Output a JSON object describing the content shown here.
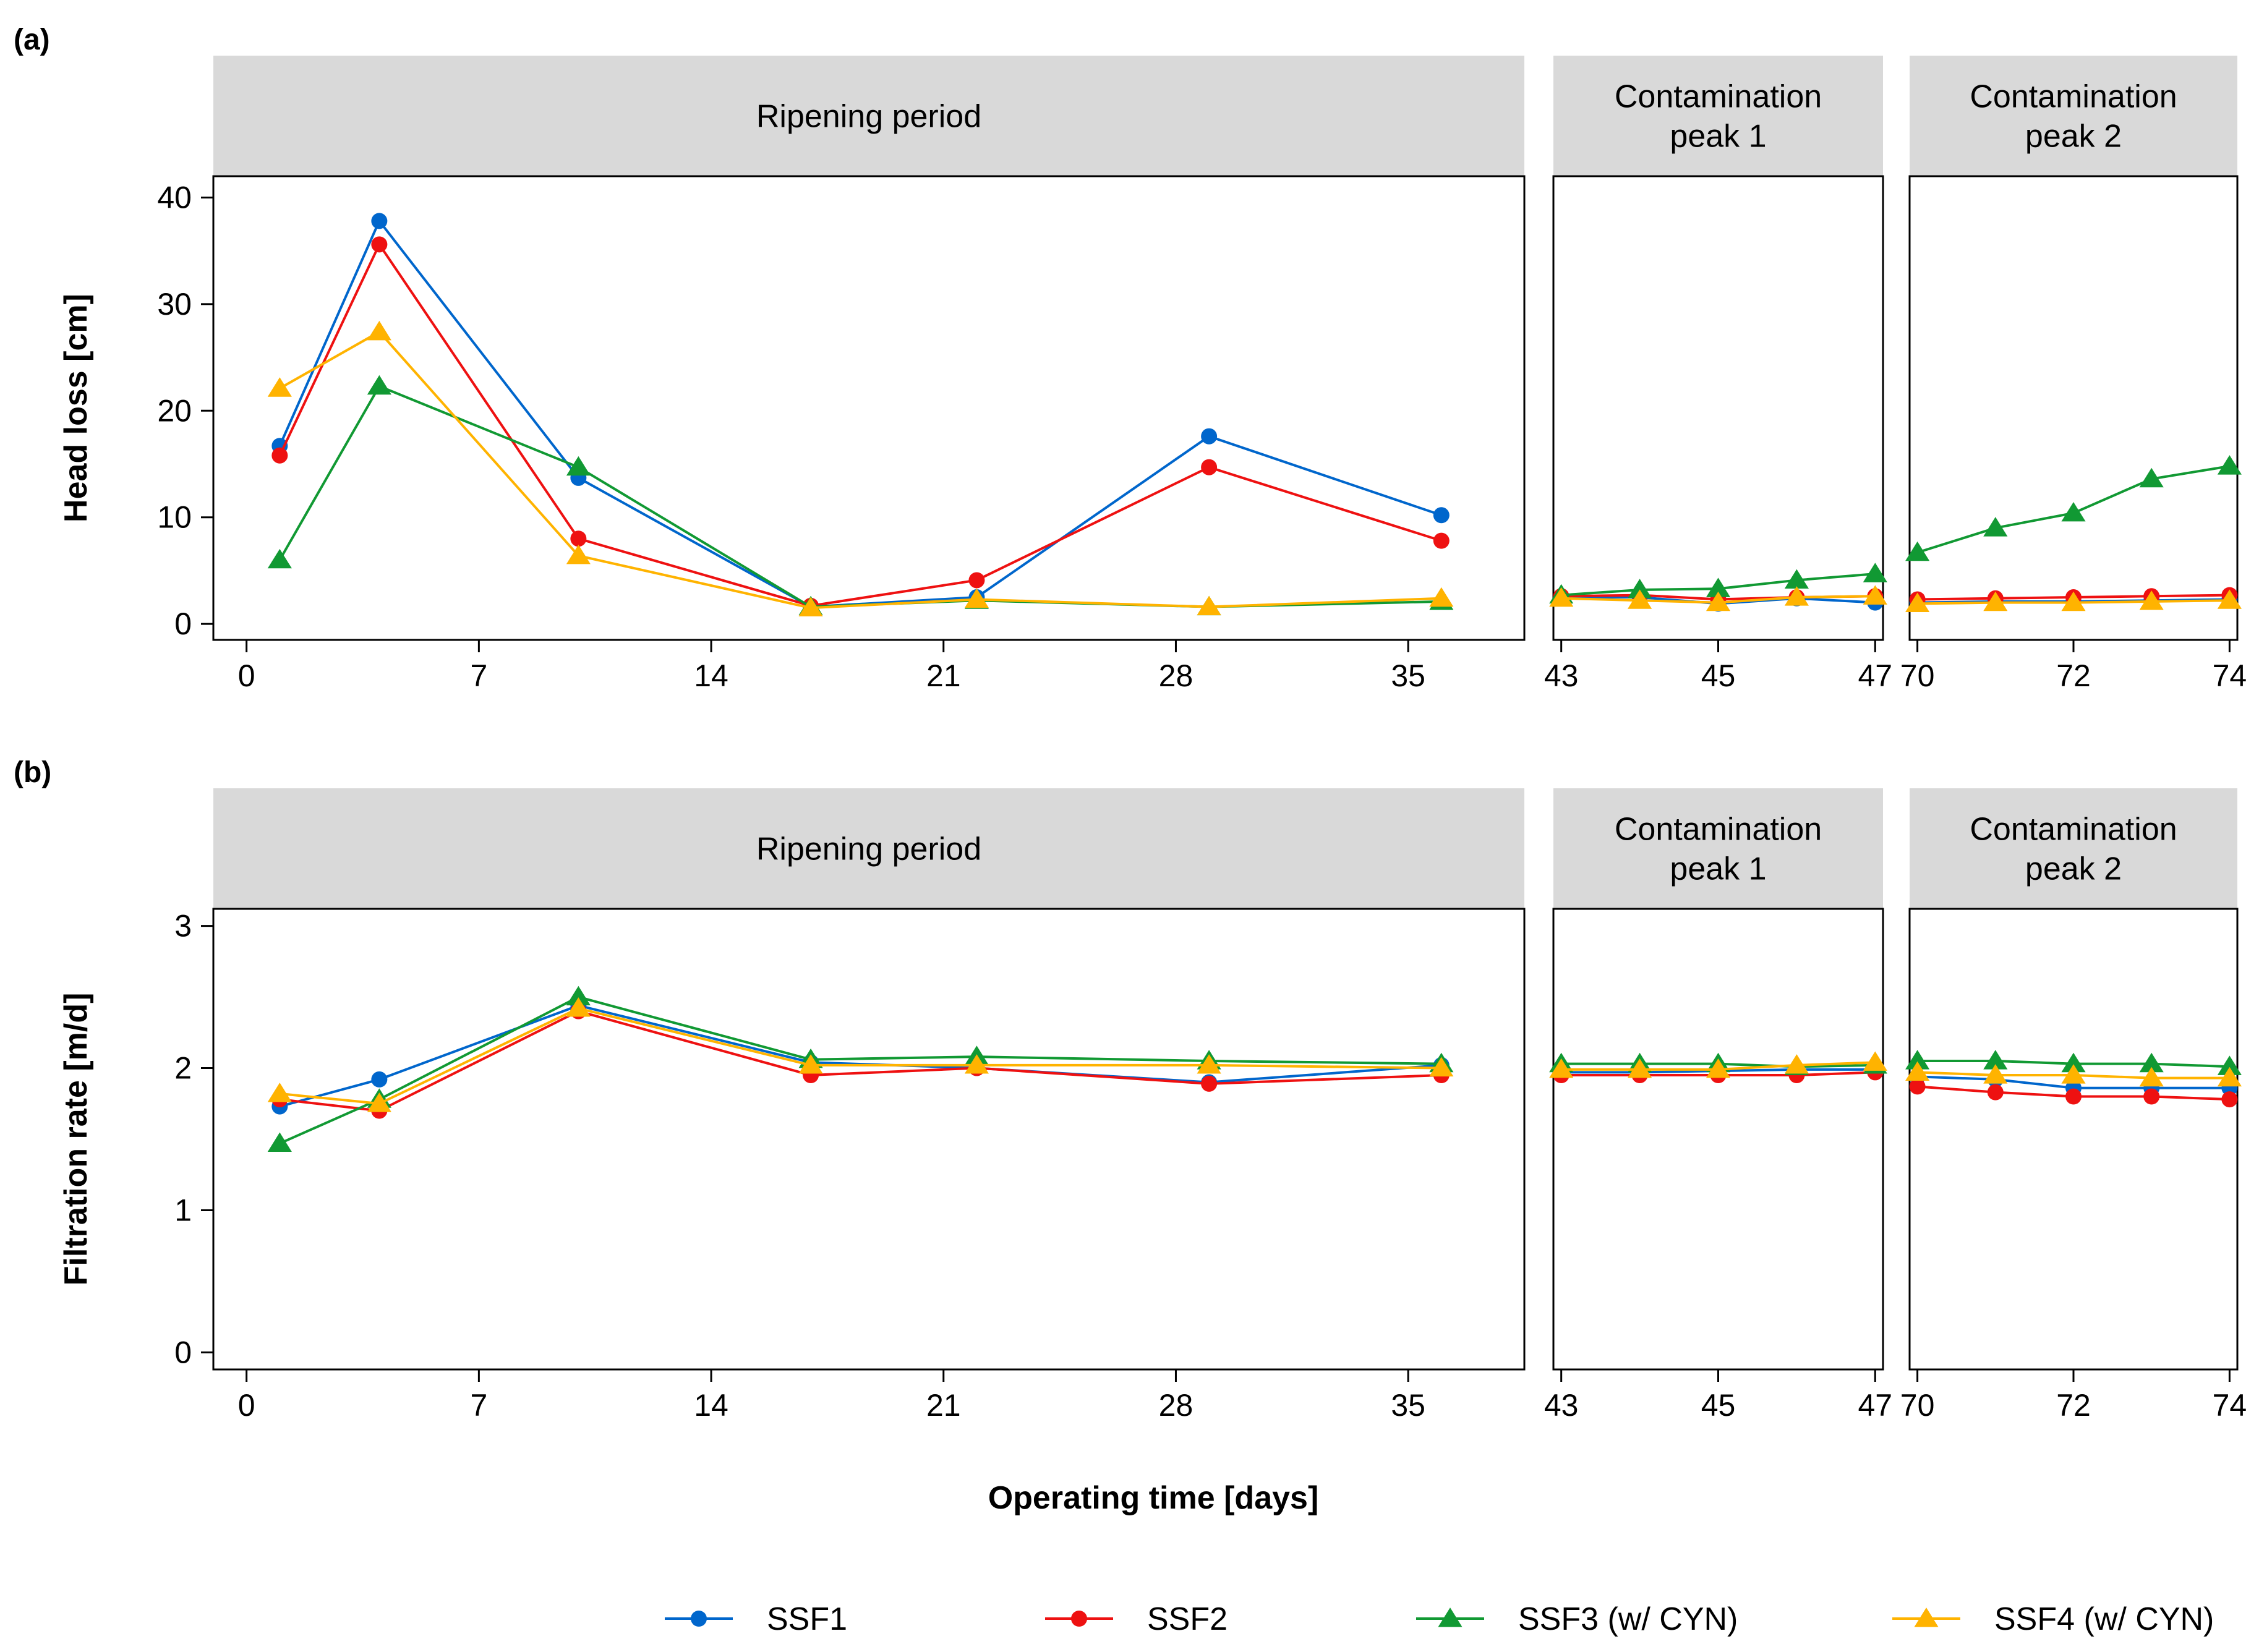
{
  "chart_data": {
    "type": "line",
    "xlabel": "Operating time [days]",
    "legend": {
      "position": "bottom",
      "entries": [
        {
          "name": "SSF1",
          "color": "#0066CC",
          "marker": "circle"
        },
        {
          "name": "SSF2",
          "color": "#EE1111",
          "marker": "circle"
        },
        {
          "name": "SSF3 (w/ CYN)",
          "color": "#119933",
          "marker": "triangle"
        },
        {
          "name": "SSF4 (w/ CYN)",
          "color": "#FFB300",
          "marker": "triangle"
        }
      ]
    },
    "facets": [
      {
        "label": "Ripening period",
        "xlim": [
          -1,
          38.5
        ],
        "xticks": [
          0,
          7,
          14,
          21,
          28,
          35
        ]
      },
      {
        "label": "Contamination\npeak 1",
        "xlim": [
          42.9,
          47.1
        ],
        "xticks": [
          43,
          45,
          47
        ]
      },
      {
        "label": "Contamination\npeak 2",
        "xlim": [
          69.9,
          74.1
        ],
        "xticks": [
          70,
          72,
          74
        ]
      }
    ],
    "panels": [
      {
        "tag": "(a)",
        "ylabel": "Head loss [cm]",
        "ylim": [
          -1.5,
          42
        ],
        "yticks": [
          0,
          10,
          20,
          30,
          40
        ],
        "series": [
          {
            "name": "SSF1",
            "points": [
              [
                1,
                16.7
              ],
              [
                4,
                37.8
              ],
              [
                10,
                13.7
              ],
              [
                17,
                1.6
              ],
              [
                22,
                2.5
              ],
              [
                29,
                17.6
              ],
              [
                36,
                10.2
              ],
              [
                43,
                2.5
              ],
              [
                44,
                2.5
              ],
              [
                45,
                1.9
              ],
              [
                46,
                2.4
              ],
              [
                47,
                2.0
              ],
              [
                70,
                2.0
              ],
              [
                71,
                2.1
              ],
              [
                72,
                2.1
              ],
              [
                73,
                2.2
              ],
              [
                74,
                2.3
              ]
            ]
          },
          {
            "name": "SSF2",
            "points": [
              [
                1,
                15.8
              ],
              [
                4,
                35.6
              ],
              [
                10,
                8.0
              ],
              [
                17,
                1.7
              ],
              [
                22,
                4.1
              ],
              [
                29,
                14.7
              ],
              [
                36,
                7.8
              ],
              [
                43,
                2.6
              ],
              [
                44,
                2.7
              ],
              [
                45,
                2.3
              ],
              [
                46,
                2.5
              ],
              [
                47,
                2.6
              ],
              [
                70,
                2.3
              ],
              [
                71,
                2.4
              ],
              [
                72,
                2.5
              ],
              [
                73,
                2.6
              ],
              [
                74,
                2.7
              ]
            ]
          },
          {
            "name": "SSF3 (w/ CYN)",
            "points": [
              [
                1,
                6.0
              ],
              [
                4,
                22.3
              ],
              [
                10,
                14.7
              ],
              [
                17,
                1.6
              ],
              [
                22,
                2.2
              ],
              [
                29,
                1.6
              ],
              [
                36,
                2.1
              ],
              [
                43,
                2.7
              ],
              [
                44,
                3.2
              ],
              [
                45,
                3.3
              ],
              [
                46,
                4.1
              ],
              [
                47,
                4.7
              ],
              [
                70,
                6.7
              ],
              [
                71,
                9.0
              ],
              [
                72,
                10.4
              ],
              [
                73,
                13.6
              ],
              [
                74,
                14.8
              ]
            ]
          },
          {
            "name": "SSF4 (w/ CYN)",
            "points": [
              [
                1,
                22.1
              ],
              [
                4,
                27.4
              ],
              [
                10,
                6.4
              ],
              [
                17,
                1.5
              ],
              [
                22,
                2.3
              ],
              [
                29,
                1.6
              ],
              [
                36,
                2.4
              ],
              [
                43,
                2.4
              ],
              [
                44,
                2.2
              ],
              [
                45,
                2.0
              ],
              [
                46,
                2.5
              ],
              [
                47,
                2.6
              ],
              [
                70,
                1.9
              ],
              [
                71,
                2.0
              ],
              [
                72,
                2.0
              ],
              [
                73,
                2.1
              ],
              [
                74,
                2.2
              ]
            ]
          }
        ]
      },
      {
        "tag": "(b)",
        "ylabel": "Filtration rate [m/d]",
        "ylim": [
          -0.12,
          3.12
        ],
        "yticks": [
          0,
          1,
          2,
          3
        ],
        "series": [
          {
            "name": "SSF1",
            "points": [
              [
                1,
                1.73
              ],
              [
                4,
                1.92
              ],
              [
                10,
                2.44
              ],
              [
                17,
                2.04
              ],
              [
                22,
                2.0
              ],
              [
                29,
                1.9
              ],
              [
                36,
                2.02
              ],
              [
                43,
                1.97
              ],
              [
                44,
                1.97
              ],
              [
                45,
                1.98
              ],
              [
                46,
                1.99
              ],
              [
                47,
                1.99
              ],
              [
                70,
                1.94
              ],
              [
                71,
                1.92
              ],
              [
                72,
                1.86
              ],
              [
                73,
                1.86
              ],
              [
                74,
                1.86
              ]
            ]
          },
          {
            "name": "SSF2",
            "points": [
              [
                1,
                1.78
              ],
              [
                4,
                1.7
              ],
              [
                10,
                2.4
              ],
              [
                17,
                1.95
              ],
              [
                22,
                2.0
              ],
              [
                29,
                1.89
              ],
              [
                36,
                1.95
              ],
              [
                43,
                1.95
              ],
              [
                44,
                1.95
              ],
              [
                45,
                1.95
              ],
              [
                46,
                1.95
              ],
              [
                47,
                1.97
              ],
              [
                70,
                1.87
              ],
              [
                71,
                1.83
              ],
              [
                72,
                1.8
              ],
              [
                73,
                1.8
              ],
              [
                74,
                1.78
              ]
            ]
          },
          {
            "name": "SSF3 (w/ CYN)",
            "points": [
              [
                1,
                1.47
              ],
              [
                4,
                1.78
              ],
              [
                10,
                2.5
              ],
              [
                17,
                2.06
              ],
              [
                22,
                2.08
              ],
              [
                29,
                2.05
              ],
              [
                36,
                2.03
              ],
              [
                43,
                2.03
              ],
              [
                44,
                2.03
              ],
              [
                45,
                2.03
              ],
              [
                46,
                2.01
              ],
              [
                47,
                2.02
              ],
              [
                70,
                2.05
              ],
              [
                71,
                2.05
              ],
              [
                72,
                2.03
              ],
              [
                73,
                2.03
              ],
              [
                74,
                2.01
              ]
            ]
          },
          {
            "name": "SSF4 (w/ CYN)",
            "points": [
              [
                1,
                1.82
              ],
              [
                4,
                1.75
              ],
              [
                10,
                2.42
              ],
              [
                17,
                2.02
              ],
              [
                22,
                2.02
              ],
              [
                29,
                2.02
              ],
              [
                36,
                2.0
              ],
              [
                43,
                1.99
              ],
              [
                44,
                1.99
              ],
              [
                45,
                1.99
              ],
              [
                46,
                2.02
              ],
              [
                47,
                2.04
              ],
              [
                70,
                1.97
              ],
              [
                71,
                1.95
              ],
              [
                72,
                1.95
              ],
              [
                73,
                1.93
              ],
              [
                74,
                1.93
              ]
            ]
          }
        ]
      }
    ]
  }
}
